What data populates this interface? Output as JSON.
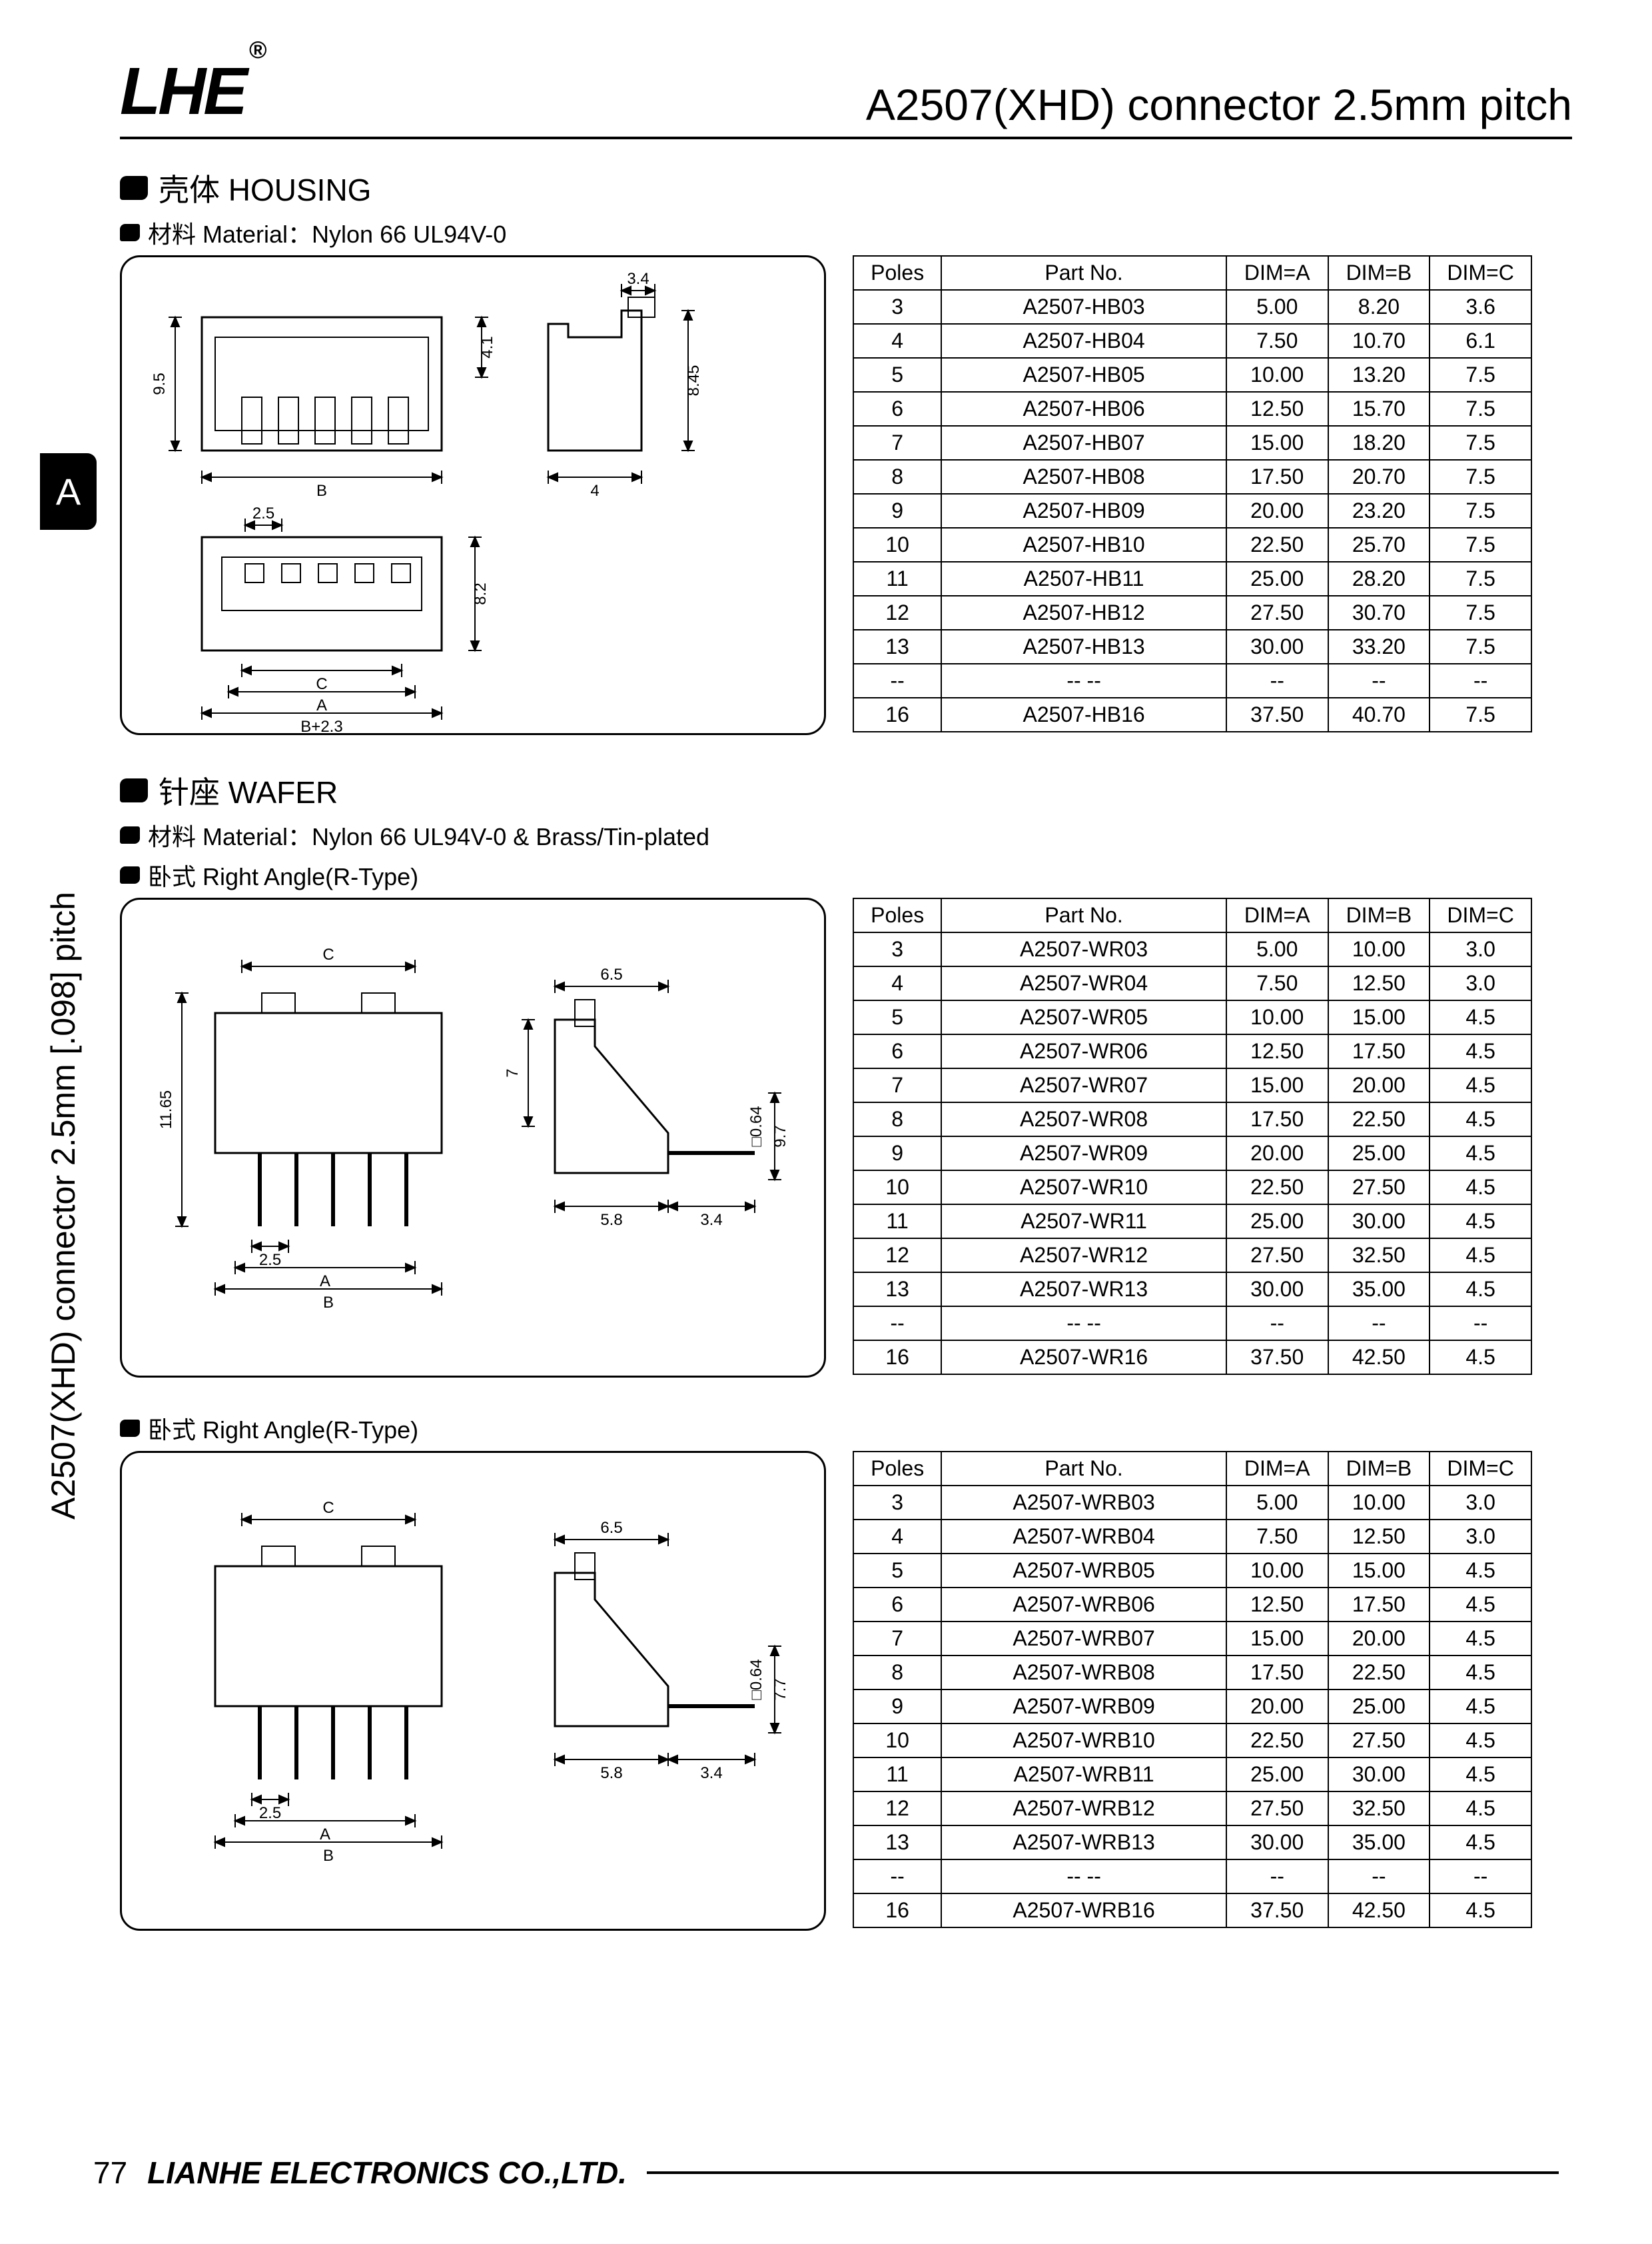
{
  "header": {
    "logo_text": "LHE",
    "logo_mark": "®",
    "title": "A2507(XHD) connector 2.5mm pitch"
  },
  "sidebar": {
    "tab_letter": "A",
    "vertical_text": "A2507(XHD) connector 2.5mm [.098] pitch"
  },
  "sections": [
    {
      "title": "壳体 HOUSING",
      "subs": [
        {
          "text": "材料 Material：Nylon 66 UL94V-0"
        }
      ],
      "diagram": {
        "type": "housing",
        "dims": {
          "pitch": "2.5",
          "w": "3.4",
          "h1": "9.5",
          "h2": "4.1",
          "h3": "8.45",
          "side_w": "4",
          "depth": "8.2",
          "labelC": "C",
          "labelA": "A",
          "labelB": "B+2.3",
          "labelBplain": "B"
        }
      },
      "table": {
        "columns": [
          "Poles",
          "Part No.",
          "DIM=A",
          "DIM=B",
          "DIM=C"
        ],
        "rows": [
          [
            "3",
            "A2507-HB03",
            "5.00",
            "8.20",
            "3.6"
          ],
          [
            "4",
            "A2507-HB04",
            "7.50",
            "10.70",
            "6.1"
          ],
          [
            "5",
            "A2507-HB05",
            "10.00",
            "13.20",
            "7.5"
          ],
          [
            "6",
            "A2507-HB06",
            "12.50",
            "15.70",
            "7.5"
          ],
          [
            "7",
            "A2507-HB07",
            "15.00",
            "18.20",
            "7.5"
          ],
          [
            "8",
            "A2507-HB08",
            "17.50",
            "20.70",
            "7.5"
          ],
          [
            "9",
            "A2507-HB09",
            "20.00",
            "23.20",
            "7.5"
          ],
          [
            "10",
            "A2507-HB10",
            "22.50",
            "25.70",
            "7.5"
          ],
          [
            "11",
            "A2507-HB11",
            "25.00",
            "28.20",
            "7.5"
          ],
          [
            "12",
            "A2507-HB12",
            "27.50",
            "30.70",
            "7.5"
          ],
          [
            "13",
            "A2507-HB13",
            "30.00",
            "33.20",
            "7.5"
          ],
          [
            "--",
            "-- --",
            "--",
            "--",
            "--"
          ],
          [
            "16",
            "A2507-HB16",
            "37.50",
            "40.70",
            "7.5"
          ]
        ]
      }
    },
    {
      "title": "针座 WAFER",
      "subs": [
        {
          "text": "材料 Material：Nylon 66 UL94V-0 & Brass/Tin-plated"
        },
        {
          "text": "卧式 Right Angle(R-Type)"
        }
      ],
      "diagram": {
        "type": "wafer_r",
        "dims": {
          "pitch": "2.5",
          "C": "C",
          "A": "A",
          "B": "B",
          "h": "11.65",
          "body_h": "7",
          "side_w": "6.5",
          "pin_sq": "□0.64",
          "pin_len": "9.7",
          "base_l": "5.8",
          "lead": "3.4"
        }
      },
      "table": {
        "columns": [
          "Poles",
          "Part No.",
          "DIM=A",
          "DIM=B",
          "DIM=C"
        ],
        "rows": [
          [
            "3",
            "A2507-WR03",
            "5.00",
            "10.00",
            "3.0"
          ],
          [
            "4",
            "A2507-WR04",
            "7.50",
            "12.50",
            "3.0"
          ],
          [
            "5",
            "A2507-WR05",
            "10.00",
            "15.00",
            "4.5"
          ],
          [
            "6",
            "A2507-WR06",
            "12.50",
            "17.50",
            "4.5"
          ],
          [
            "7",
            "A2507-WR07",
            "15.00",
            "20.00",
            "4.5"
          ],
          [
            "8",
            "A2507-WR08",
            "17.50",
            "22.50",
            "4.5"
          ],
          [
            "9",
            "A2507-WR09",
            "20.00",
            "25.00",
            "4.5"
          ],
          [
            "10",
            "A2507-WR10",
            "22.50",
            "27.50",
            "4.5"
          ],
          [
            "11",
            "A2507-WR11",
            "25.00",
            "30.00",
            "4.5"
          ],
          [
            "12",
            "A2507-WR12",
            "27.50",
            "32.50",
            "4.5"
          ],
          [
            "13",
            "A2507-WR13",
            "30.00",
            "35.00",
            "4.5"
          ],
          [
            "--",
            "-- --",
            "--",
            "--",
            "--"
          ],
          [
            "16",
            "A2507-WR16",
            "37.50",
            "42.50",
            "4.5"
          ]
        ]
      }
    },
    {
      "title": "",
      "subs": [
        {
          "text": "卧式 Right Angle(R-Type)"
        }
      ],
      "diagram": {
        "type": "wafer_rb",
        "dims": {
          "pitch": "2.5",
          "C": "C",
          "A": "A",
          "B": "B",
          "side_w": "6.5",
          "pin_sq": "□0.64",
          "pin_len": "7.7",
          "base_l": "5.8",
          "lead": "3.4"
        }
      },
      "table": {
        "columns": [
          "Poles",
          "Part No.",
          "DIM=A",
          "DIM=B",
          "DIM=C"
        ],
        "rows": [
          [
            "3",
            "A2507-WRB03",
            "5.00",
            "10.00",
            "3.0"
          ],
          [
            "4",
            "A2507-WRB04",
            "7.50",
            "12.50",
            "3.0"
          ],
          [
            "5",
            "A2507-WRB05",
            "10.00",
            "15.00",
            "4.5"
          ],
          [
            "6",
            "A2507-WRB06",
            "12.50",
            "17.50",
            "4.5"
          ],
          [
            "7",
            "A2507-WRB07",
            "15.00",
            "20.00",
            "4.5"
          ],
          [
            "8",
            "A2507-WRB08",
            "17.50",
            "22.50",
            "4.5"
          ],
          [
            "9",
            "A2507-WRB09",
            "20.00",
            "25.00",
            "4.5"
          ],
          [
            "10",
            "A2507-WRB10",
            "22.50",
            "27.50",
            "4.5"
          ],
          [
            "11",
            "A2507-WRB11",
            "25.00",
            "30.00",
            "4.5"
          ],
          [
            "12",
            "A2507-WRB12",
            "27.50",
            "32.50",
            "4.5"
          ],
          [
            "13",
            "A2507-WRB13",
            "30.00",
            "35.00",
            "4.5"
          ],
          [
            "--",
            "-- --",
            "--",
            "--",
            "--"
          ],
          [
            "16",
            "A2507-WRB16",
            "37.50",
            "42.50",
            "4.5"
          ]
        ]
      }
    }
  ],
  "footer": {
    "page_number": "77",
    "company": "LIANHE ELECTRONICS CO.,LTD."
  },
  "style": {
    "stroke": "#000000",
    "bg": "#ffffff",
    "table_border": "#000000",
    "font_body": 32,
    "font_title": 46
  }
}
